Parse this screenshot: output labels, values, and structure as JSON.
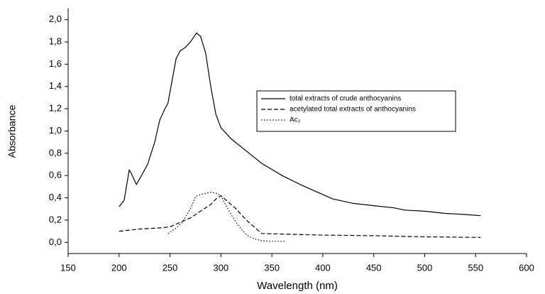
{
  "chart_data": {
    "type": "line",
    "x_label": "Wavelength (nm)",
    "y_label": "Absorbance",
    "xlim": [
      150,
      600
    ],
    "xticks": [
      150,
      200,
      250,
      300,
      350,
      400,
      450,
      500,
      550,
      600
    ],
    "ylim": [
      -0.1,
      2.1
    ],
    "yticks": [
      {
        "value": 0,
        "label": "0,0"
      },
      {
        "value": 0.2,
        "label": "0,2"
      },
      {
        "value": 0.4,
        "label": "0,4"
      },
      {
        "value": 0.6,
        "label": "0,6"
      },
      {
        "value": 0.8,
        "label": "0,8"
      },
      {
        "value": 1.0,
        "label": "1,0"
      },
      {
        "value": 1.2,
        "label": "1,2"
      },
      {
        "value": 1.4,
        "label": "1,4"
      },
      {
        "value": 1.6,
        "label": "1,6"
      },
      {
        "value": 1.8,
        "label": "1,8"
      },
      {
        "value": 2.0,
        "label": "2,0"
      }
    ],
    "legend": "center-right",
    "series": [
      {
        "name": "total extracts of crude anthocyanins",
        "color": "#000000",
        "line_style": "solid",
        "x": [
          200,
          205,
          210,
          212,
          217,
          222,
          228,
          235,
          240,
          245,
          248,
          252,
          256,
          260,
          265,
          270,
          273,
          276,
          280,
          285,
          290,
          295,
          300,
          310,
          325,
          340,
          360,
          380,
          400,
          410,
          430,
          450,
          470,
          480,
          500,
          520,
          540,
          555
        ],
        "values": [
          0.32,
          0.38,
          0.65,
          0.62,
          0.52,
          0.6,
          0.7,
          0.9,
          1.1,
          1.2,
          1.25,
          1.45,
          1.65,
          1.72,
          1.75,
          1.8,
          1.84,
          1.88,
          1.85,
          1.7,
          1.4,
          1.15,
          1.03,
          0.93,
          0.82,
          0.71,
          0.6,
          0.51,
          0.43,
          0.39,
          0.35,
          0.33,
          0.31,
          0.29,
          0.28,
          0.26,
          0.25,
          0.24
        ]
      },
      {
        "name": "acetylated total extracts of anthocyanins",
        "color": "#000000",
        "line_style": "dashed",
        "x": [
          200,
          210,
          220,
          240,
          250,
          260,
          270,
          280,
          290,
          295,
          300,
          305,
          315,
          325,
          335,
          340,
          360,
          400,
          450,
          500,
          555
        ],
        "values": [
          0.1,
          0.11,
          0.12,
          0.13,
          0.14,
          0.18,
          0.22,
          0.28,
          0.34,
          0.39,
          0.42,
          0.38,
          0.3,
          0.2,
          0.12,
          0.08,
          0.075,
          0.065,
          0.06,
          0.05,
          0.045
        ]
      },
      {
        "name": "Ac₂",
        "color": "#000000",
        "line_style": "dotted",
        "x": [
          248,
          255,
          262,
          268,
          272,
          275,
          280,
          290,
          296,
          300,
          305,
          310,
          315,
          320,
          325,
          330,
          340,
          350,
          364
        ],
        "values": [
          0.08,
          0.12,
          0.18,
          0.27,
          0.34,
          0.41,
          0.43,
          0.45,
          0.44,
          0.42,
          0.33,
          0.25,
          0.18,
          0.12,
          0.07,
          0.04,
          0.015,
          0.01,
          0.01
        ]
      }
    ]
  }
}
